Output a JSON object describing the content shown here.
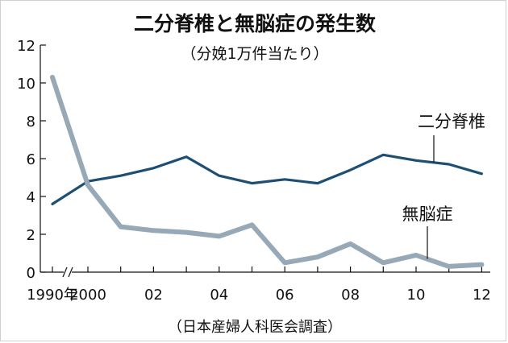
{
  "chart_data": {
    "type": "line",
    "title": "二分脊椎と無脳症の発生数",
    "subtitle": "（分娩1万件当たり）",
    "source": "（日本産婦人科医会調査）",
    "xlabel": "",
    "ylabel": "",
    "ylim": [
      0,
      12
    ],
    "y_ticks": [
      0,
      2,
      4,
      6,
      8,
      10,
      12
    ],
    "x_values": [
      1990,
      2000,
      2001,
      2002,
      2003,
      2004,
      2005,
      2006,
      2007,
      2008,
      2009,
      2010,
      2011,
      2012
    ],
    "x_tick_values": [
      1990,
      2000,
      2002,
      2004,
      2006,
      2008,
      2010,
      2012
    ],
    "x_tick_labels": [
      "1990年",
      "2000",
      "02",
      "04",
      "06",
      "08",
      "10",
      "12"
    ],
    "axis_break": "between 1990 and 2000",
    "series": [
      {
        "name": "二分脊椎",
        "color": "#1d4e73",
        "values": [
          3.6,
          4.8,
          5.1,
          5.5,
          6.1,
          5.1,
          4.7,
          4.9,
          4.7,
          5.4,
          6.2,
          5.9,
          5.7,
          5.2
        ]
      },
      {
        "name": "無脳症",
        "color": "#97a8b6",
        "values": [
          10.3,
          4.6,
          2.4,
          2.2,
          2.1,
          1.9,
          2.5,
          0.5,
          0.8,
          1.5,
          0.5,
          0.9,
          0.3,
          0.4
        ]
      }
    ]
  }
}
